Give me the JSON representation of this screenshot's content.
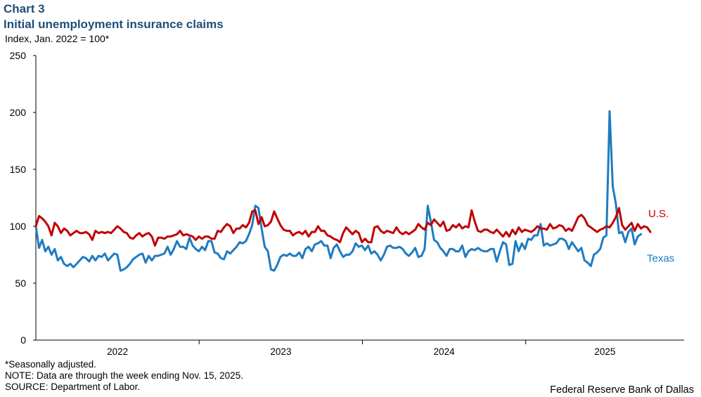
{
  "header": {
    "chart_number": "Chart 3",
    "title": "Initial unemployment insurance claims",
    "unit": "Index,  Jan. 2022 = 100*"
  },
  "footer": {
    "note1": "*Seasonally adjusted.",
    "note2": "NOTE: Data are through the week ending Nov. 15, 2025.",
    "note3": "SOURCE: Department of Labor.",
    "credit": "Federal Reserve Bank of Dallas"
  },
  "colors": {
    "us": "#c00000",
    "texas": "#1f7bc1",
    "title": "#1f4e79"
  },
  "chart_data": {
    "type": "line",
    "title": "Initial unemployment insurance claims",
    "ylabel": "Index, Jan. 2022 = 100*",
    "ylim": [
      0,
      250
    ],
    "yticks": [
      0,
      50,
      100,
      150,
      200,
      250
    ],
    "xlim": [
      2022.0,
      2025.97
    ],
    "year_labels": [
      "2022",
      "2023",
      "2024",
      "2025"
    ],
    "x_start": 2022.0,
    "x_step": 0.0192,
    "series": [
      {
        "name": "U.S.",
        "color": "#c00000",
        "values": [
          100,
          109,
          107,
          104,
          100,
          92,
          103,
          100,
          94,
          98,
          96,
          92,
          94,
          96,
          94,
          94,
          95,
          93,
          88,
          96,
          94,
          95,
          94,
          95,
          94,
          97,
          100,
          98,
          95,
          94,
          90,
          89,
          92,
          94,
          91,
          93,
          94,
          91,
          83,
          90,
          90,
          89,
          91,
          91,
          92,
          93,
          96,
          92,
          93,
          92,
          91,
          88,
          91,
          89,
          91,
          91,
          89,
          89,
          96,
          95,
          99,
          102,
          100,
          94,
          98,
          98,
          101,
          99,
          103,
          113,
          114,
          102,
          108,
          100,
          101,
          104,
          113,
          107,
          101,
          97,
          96,
          96,
          92,
          94,
          95,
          93,
          96,
          91,
          95,
          95,
          100,
          96,
          96,
          92,
          91,
          89,
          88,
          86,
          94,
          99,
          96,
          93,
          96,
          94,
          86,
          89,
          86,
          86,
          99,
          100,
          96,
          94,
          96,
          95,
          94,
          99,
          95,
          93,
          95,
          93,
          95,
          97,
          102,
          99,
          97,
          103,
          101,
          106,
          103,
          100,
          104,
          96,
          97,
          101,
          99,
          102,
          98,
          100,
          99,
          114,
          104,
          96,
          95,
          97,
          97,
          95,
          94,
          97,
          94,
          91,
          95,
          91,
          97,
          93,
          99,
          95,
          97,
          96,
          95,
          97,
          100,
          98,
          98,
          97,
          102,
          98,
          99,
          101,
          100,
          96,
          98,
          96,
          102,
          108,
          110,
          107,
          101,
          99,
          97,
          95,
          97,
          98,
          100,
          99,
          103,
          108,
          116,
          101,
          97,
          100,
          103,
          96,
          102,
          98,
          100,
          99,
          95
        ]
      },
      {
        "name": "Texas",
        "color": "#1f7bc1",
        "values": [
          100,
          81,
          88,
          78,
          82,
          75,
          80,
          70,
          73,
          67,
          65,
          67,
          64,
          67,
          70,
          73,
          72,
          69,
          74,
          70,
          74,
          73,
          76,
          70,
          73,
          76,
          75,
          61,
          62,
          64,
          67,
          71,
          73,
          75,
          76,
          68,
          74,
          70,
          74,
          74,
          75,
          76,
          82,
          75,
          80,
          87,
          82,
          82,
          80,
          90,
          83,
          80,
          78,
          82,
          79,
          87,
          87,
          77,
          76,
          72,
          71,
          78,
          76,
          79,
          82,
          86,
          85,
          87,
          93,
          101,
          118,
          116,
          98,
          82,
          78,
          62,
          61,
          66,
          73,
          75,
          74,
          76,
          74,
          74,
          77,
          72,
          80,
          82,
          78,
          84,
          85,
          87,
          83,
          83,
          72,
          81,
          84,
          78,
          73,
          75,
          75,
          78,
          85,
          82,
          83,
          79,
          83,
          76,
          78,
          75,
          70,
          75,
          82,
          83,
          81,
          81,
          82,
          80,
          76,
          74,
          77,
          81,
          73,
          74,
          80,
          118,
          104,
          88,
          86,
          81,
          78,
          74,
          80,
          80,
          78,
          78,
          83,
          73,
          78,
          80,
          79,
          81,
          79,
          78,
          78,
          80,
          80,
          69,
          78,
          86,
          84,
          66,
          67,
          87,
          78,
          85,
          80,
          89,
          88,
          92,
          92,
          102,
          83,
          85,
          83,
          84,
          85,
          89,
          89,
          87,
          80,
          86,
          82,
          78,
          81,
          70,
          68,
          65,
          75,
          77,
          80,
          90,
          92,
          201,
          135,
          120,
          94,
          95,
          86,
          95,
          98,
          84,
          91,
          93
        ]
      }
    ]
  }
}
